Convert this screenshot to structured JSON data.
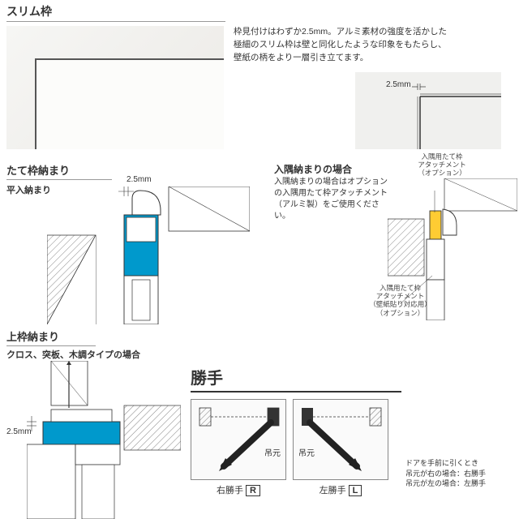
{
  "section1": {
    "title": "スリム枠",
    "description": "枠見付けはわずか2.5mm。アルミ素材の強度を活かした極細のスリム枠は壁と同化したような印象をもたらし、壁紙の柄をより一層引き立てます。",
    "dim_label": "2.5mm",
    "photo_bg": "#f0efe9",
    "dimfig_bg": "#f0f0ee"
  },
  "section2": {
    "title": "たて枠納まり",
    "sub_a": "平入納まり",
    "measure_a": "2.5mm",
    "sub_b": "入隅納まりの場合",
    "desc_b": "入隅納まりの場合はオプションの入隅用たて枠アタッチメント（アルミ製）をご使用ください。",
    "annot_top": "入隅用たて枠\nアタッチメント\n（オプション）",
    "annot_bottom": "入隅用たて枠\nアタッチメント\n（壁紙貼り対応用）\n（オプション）",
    "diagram_colors": {
      "fill": "#0099cc",
      "highlight": "#ffcc33",
      "line": "#333333",
      "hatch": "#888888"
    }
  },
  "section3": {
    "title": "上枠納まり",
    "sub_a": "クロス、突板、木調タイプの場合",
    "measure": "2.5mm",
    "diagram_colors": {
      "fill": "#0099cc",
      "line": "#333333"
    }
  },
  "katte": {
    "title": "勝手",
    "hinge_label": "吊元",
    "right": {
      "label": "右勝手",
      "badge": "R"
    },
    "left": {
      "label": "左勝手",
      "badge": "L"
    },
    "note": "ドアを手前に引くとき\n吊元が右の場合：右勝手\n吊元が左の場合：左勝手",
    "colors": {
      "hatch": "#888888",
      "arrow": "#222222",
      "box_border": "#888888"
    }
  }
}
